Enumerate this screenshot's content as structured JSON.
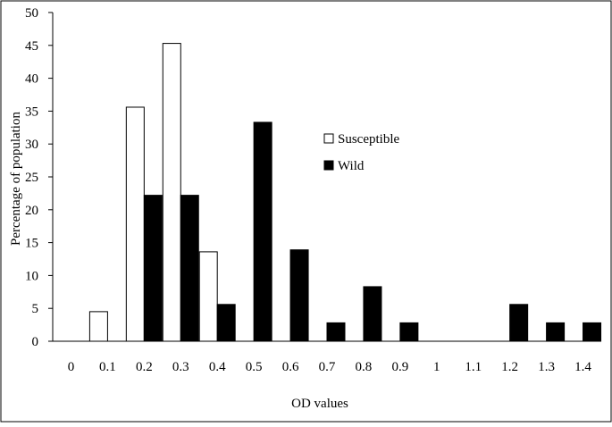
{
  "chart_data": {
    "type": "bar",
    "title": "",
    "xlabel": "OD values",
    "ylabel": "Percentage of population",
    "categories": [
      "0",
      "0.1",
      "0.2",
      "0.3",
      "0.4",
      "0.5",
      "0.6",
      "0.7",
      "0.8",
      "0.9",
      "1",
      "1.1",
      "1.2",
      "1.3",
      "1.4"
    ],
    "series": [
      {
        "name": "Susceptible",
        "color": "#ffffff",
        "values": [
          0,
          4.5,
          35.6,
          45.3,
          13.6,
          0,
          0,
          0,
          0,
          0,
          0,
          0,
          0,
          0,
          0
        ]
      },
      {
        "name": "Wild",
        "color": "#000000",
        "values": [
          0,
          0,
          22.2,
          22.2,
          5.6,
          33.3,
          13.9,
          2.8,
          8.3,
          2.8,
          0,
          0,
          5.6,
          2.8,
          2.8
        ]
      }
    ],
    "ylim": [
      0,
      50
    ],
    "yticks": [
      "0",
      "5",
      "10",
      "15",
      "20",
      "25",
      "30",
      "35",
      "40",
      "45",
      "50"
    ],
    "grid": false,
    "legend_position": "right-middle"
  }
}
